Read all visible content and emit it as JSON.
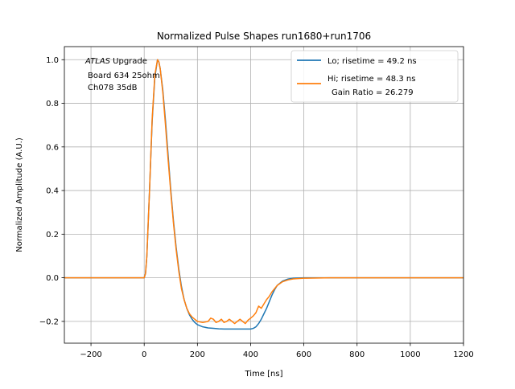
{
  "chart_data": {
    "type": "line",
    "title": "Normalized Pulse Shapes run1680+run1706",
    "xlabel": "Time [ns]",
    "ylabel": "Normalized Amplitude (A.U.)",
    "xlim": [
      -300,
      1200
    ],
    "ylim": [
      -0.3,
      1.06
    ],
    "xticks": [
      -200,
      0,
      200,
      400,
      600,
      800,
      1000,
      1200
    ],
    "xtick_labels": [
      "−200",
      "0",
      "200",
      "400",
      "600",
      "800",
      "1000",
      "1200"
    ],
    "yticks": [
      -0.2,
      0.0,
      0.2,
      0.4,
      0.6,
      0.8,
      1.0
    ],
    "ytick_labels": [
      "−0.2",
      "0.0",
      "0.2",
      "0.4",
      "0.6",
      "0.8",
      "1.0"
    ],
    "grid": true,
    "legend_position": "top-right",
    "annotation": {
      "line1_italic": "ATLAS",
      "line1_rest": " Upgrade",
      "line2": "Board 634 25ohm",
      "line3": "Ch078 35dB"
    },
    "series": [
      {
        "name": "Lo; risetime = 49.2 ns",
        "color": "#1f77b4",
        "x": [
          -300,
          -100,
          0,
          5,
          10,
          20,
          30,
          40,
          50,
          55,
          60,
          70,
          80,
          90,
          100,
          110,
          120,
          130,
          140,
          150,
          160,
          170,
          180,
          190,
          200,
          220,
          240,
          260,
          280,
          300,
          350,
          400,
          410,
          420,
          430,
          440,
          450,
          460,
          470,
          480,
          490,
          500,
          520,
          540,
          560,
          600,
          700,
          800,
          1000,
          1200
        ],
        "y": [
          0.0,
          0.0,
          0.0,
          0.02,
          0.1,
          0.4,
          0.72,
          0.92,
          1.0,
          0.99,
          0.96,
          0.86,
          0.72,
          0.56,
          0.4,
          0.26,
          0.14,
          0.04,
          -0.04,
          -0.1,
          -0.14,
          -0.17,
          -0.19,
          -0.205,
          -0.215,
          -0.225,
          -0.23,
          -0.232,
          -0.234,
          -0.235,
          -0.235,
          -0.235,
          -0.232,
          -0.225,
          -0.21,
          -0.19,
          -0.165,
          -0.14,
          -0.11,
          -0.08,
          -0.055,
          -0.035,
          -0.015,
          -0.006,
          -0.002,
          0.0,
          0.0,
          0.0,
          0.0,
          0.0
        ]
      },
      {
        "name": "Hi; risetime = 48.3 ns",
        "name_line2": "Gain Ratio = 26.279",
        "color": "#ff7f0e",
        "x": [
          -300,
          -100,
          0,
          5,
          10,
          20,
          30,
          40,
          50,
          55,
          60,
          70,
          80,
          90,
          100,
          110,
          120,
          130,
          140,
          150,
          160,
          170,
          180,
          190,
          200,
          220,
          240,
          250,
          260,
          270,
          280,
          290,
          300,
          310,
          320,
          330,
          340,
          350,
          360,
          370,
          380,
          390,
          400,
          410,
          420,
          430,
          440,
          450,
          460,
          470,
          480,
          500,
          520,
          540,
          560,
          600,
          700,
          800,
          1000,
          1200
        ],
        "y": [
          0.0,
          0.0,
          0.0,
          0.02,
          0.1,
          0.4,
          0.73,
          0.93,
          1.0,
          0.99,
          0.96,
          0.85,
          0.7,
          0.54,
          0.39,
          0.25,
          0.13,
          0.03,
          -0.05,
          -0.1,
          -0.14,
          -0.165,
          -0.18,
          -0.19,
          -0.2,
          -0.205,
          -0.2,
          -0.185,
          -0.19,
          -0.205,
          -0.2,
          -0.19,
          -0.205,
          -0.2,
          -0.19,
          -0.2,
          -0.21,
          -0.2,
          -0.19,
          -0.2,
          -0.21,
          -0.195,
          -0.185,
          -0.175,
          -0.16,
          -0.13,
          -0.14,
          -0.12,
          -0.1,
          -0.085,
          -0.065,
          -0.035,
          -0.018,
          -0.01,
          -0.005,
          -0.002,
          0.0,
          0.0,
          0.0,
          0.0
        ]
      }
    ]
  }
}
